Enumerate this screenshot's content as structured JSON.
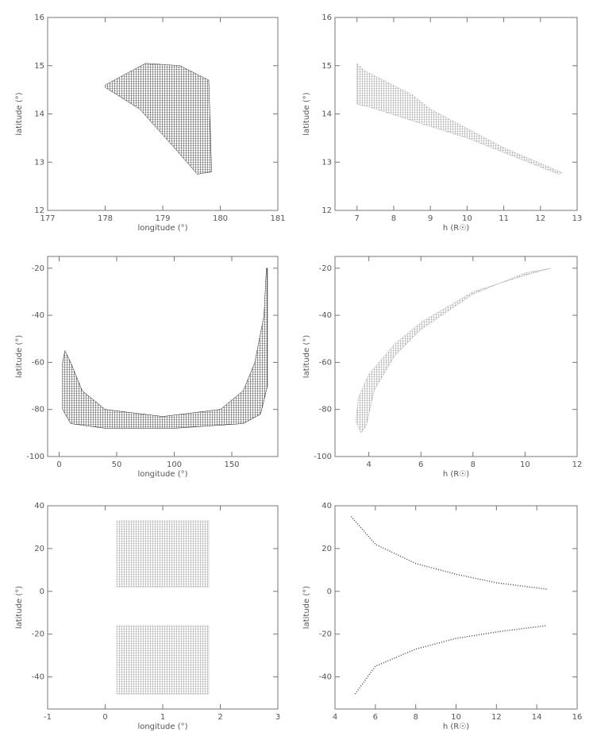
{
  "chart_data": [
    {
      "type": "region",
      "xlabel": "longitude (°)",
      "ylabel": "latitude (°)",
      "xlim": [
        177,
        181
      ],
      "ylim": [
        12,
        16
      ],
      "xticks": [
        177,
        178,
        179,
        180,
        181
      ],
      "yticks": [
        12,
        13,
        14,
        15,
        16
      ],
      "series": [
        {
          "color": "#222",
          "x": [
            178.0,
            178.7,
            179.3,
            179.8,
            179.85,
            179.6,
            179.2,
            178.6,
            178.0
          ],
          "y": [
            14.6,
            15.05,
            15.0,
            14.7,
            12.8,
            12.75,
            13.3,
            14.1,
            14.55
          ]
        }
      ]
    },
    {
      "type": "region",
      "xlabel": "h (R☉)",
      "ylabel": "latitude (°)",
      "xlim": [
        6.4,
        13
      ],
      "ylim": [
        12,
        16
      ],
      "xticks": [
        7,
        8,
        9,
        10,
        11,
        12,
        13
      ],
      "yticks": [
        12,
        13,
        14,
        15,
        16
      ],
      "series": [
        {
          "color": "#777",
          "x": [
            7.0,
            7.2,
            8.5,
            9.0,
            11.0,
            12.6,
            12.5,
            10.0,
            7.3,
            7.0
          ],
          "y": [
            15.05,
            14.9,
            14.4,
            14.1,
            13.3,
            12.78,
            12.75,
            13.5,
            14.15,
            14.2
          ]
        }
      ]
    },
    {
      "type": "region",
      "xlabel": "longitude (°)",
      "ylabel": "latitude (°)",
      "xlim": [
        -10,
        190
      ],
      "ylim": [
        -100,
        -15
      ],
      "xticks": [
        0,
        50,
        100,
        150
      ],
      "yticks": [
        -100,
        -80,
        -60,
        -40,
        -20
      ],
      "series": [
        {
          "color": "#111",
          "x": [
            5,
            10,
            20,
            40,
            90,
            140,
            160,
            170,
            178,
            180,
            181,
            181,
            175,
            160,
            100,
            40,
            10,
            3,
            3
          ],
          "y": [
            -55,
            -60,
            -72,
            -80,
            -83,
            -80,
            -72,
            -60,
            -40,
            -20,
            -20,
            -70,
            -82,
            -86,
            -88,
            -88,
            -86,
            -80,
            -60
          ]
        }
      ]
    },
    {
      "type": "region",
      "xlabel": "h (R☉)",
      "ylabel": "latitude (°)",
      "xlim": [
        2.7,
        12
      ],
      "ylim": [
        -100,
        -15
      ],
      "xticks": [
        4,
        6,
        8,
        10,
        12
      ],
      "yticks": [
        -100,
        -80,
        -60,
        -40,
        -20
      ],
      "series": [
        {
          "color": "#666",
          "x": [
            3.5,
            3.6,
            4.0,
            5.0,
            6.0,
            8.0,
            10.0,
            11.0,
            10.0,
            8.0,
            6.0,
            5.0,
            4.2,
            3.9,
            3.7
          ],
          "y": [
            -85,
            -75,
            -65,
            -52,
            -43,
            -30,
            -23,
            -20,
            -22,
            -31,
            -46,
            -57,
            -72,
            -87,
            -90
          ]
        }
      ]
    },
    {
      "type": "region",
      "xlabel": "longitude (°)",
      "ylabel": "latitude (°)",
      "xlim": [
        -1,
        3
      ],
      "ylim": [
        -55,
        40
      ],
      "xticks": [
        -1,
        0,
        1,
        2,
        3
      ],
      "yticks": [
        -40,
        -20,
        0,
        20,
        40
      ],
      "series": [
        {
          "color": "#888",
          "x": [
            0.2,
            1.8,
            1.8,
            0.2
          ],
          "y": [
            2,
            2,
            33,
            33
          ]
        },
        {
          "color": "#888",
          "x": [
            0.2,
            1.8,
            1.8,
            0.2
          ],
          "y": [
            -48,
            -48,
            -16,
            -16
          ]
        }
      ]
    },
    {
      "type": "line",
      "xlabel": "h (R☉)",
      "ylabel": "latitude (°)",
      "xlim": [
        4,
        16
      ],
      "ylim": [
        -55,
        40
      ],
      "xticks": [
        4,
        6,
        8,
        10,
        12,
        14,
        16
      ],
      "yticks": [
        -40,
        -20,
        0,
        20,
        40
      ],
      "series": [
        {
          "color": "#444",
          "x": [
            4.8,
            6,
            8,
            10,
            12,
            14.5
          ],
          "y": [
            35,
            22,
            13,
            8,
            4,
            1
          ]
        },
        {
          "color": "#444",
          "x": [
            5,
            6,
            8,
            10,
            12,
            14.5
          ],
          "y": [
            -48,
            -35,
            -27,
            -22,
            -19,
            -16
          ]
        }
      ]
    }
  ]
}
